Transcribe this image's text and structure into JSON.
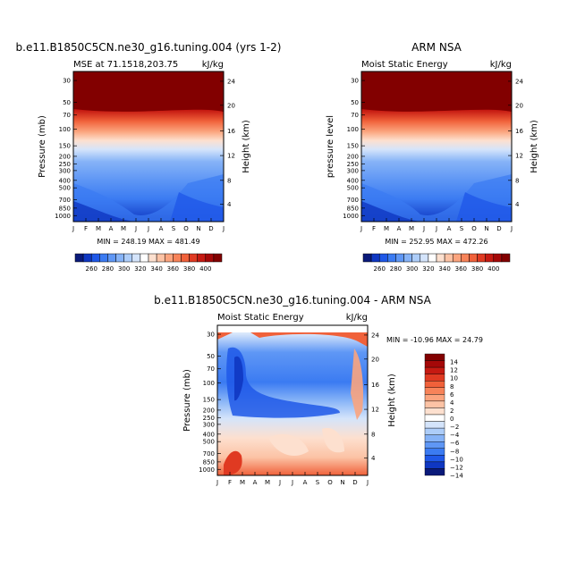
{
  "panel_top_left": {
    "title": "b.e11.B1850C5CN.ne30_g16.tuning.004 (yrs 1-2)",
    "left_label": "MSE at 71.1518,203.75",
    "right_label": "kJ/kg",
    "ylabel_left": "Pressure (mb)",
    "ylabel_right": "Height (km)",
    "minmax": "MIN = 248.19 MAX = 481.49"
  },
  "panel_top_right": {
    "title": "ARM NSA",
    "left_label": "Moist Static Energy",
    "right_label": "kJ/kg",
    "ylabel_left": "pressure level",
    "ylabel_right": "Height (km)",
    "minmax": "MIN = 252.95 MAX = 472.26"
  },
  "panel_bottom": {
    "title": "b.e11.B1850C5CN.ne30_g16.tuning.004 - ARM NSA",
    "left_label": "Moist Static Energy",
    "right_label": "kJ/kg",
    "ylabel_left": "Pressure (mb)",
    "ylabel_right": "Height (km)",
    "minmax": "MIN = -10.96 MAX =  24.79"
  },
  "chart_data": [
    {
      "type": "heatmap",
      "title": "MSE at 71.1518,203.75",
      "x_ticks": [
        "J",
        "F",
        "M",
        "A",
        "M",
        "J",
        "J",
        "A",
        "S",
        "O",
        "N",
        "D",
        "J"
      ],
      "y_ticks_pressure": [
        "30",
        "50",
        "70",
        "100",
        "150",
        "200",
        "250",
        "300",
        "400",
        "500",
        "700",
        "850",
        "1000"
      ],
      "y_ticks_height": [
        "24",
        "20",
        "16",
        "12",
        "8",
        "4"
      ],
      "colorbar_labels": [
        "260",
        "280",
        "300",
        "320",
        "340",
        "360",
        "380",
        "400"
      ],
      "colorbar_colors": [
        "#0a1a7a",
        "#0f37c2",
        "#1f58e8",
        "#3b7bf2",
        "#5f97f5",
        "#86b3f7",
        "#adcdf9",
        "#d4e4fb",
        "#ffffff",
        "#fde0cf",
        "#fcc3a5",
        "#fba47e",
        "#f78359",
        "#f0613a",
        "#e03a22",
        "#c61a12",
        "#a50808",
        "#820000"
      ],
      "minmax": "MIN = 248.19 MAX = 481.49"
    },
    {
      "type": "heatmap",
      "title": "Moist Static Energy",
      "x_ticks": [
        "J",
        "F",
        "M",
        "A",
        "M",
        "J",
        "J",
        "A",
        "S",
        "O",
        "N",
        "D",
        "J"
      ],
      "y_ticks_pressure": [
        "30",
        "50",
        "70",
        "100",
        "150",
        "200",
        "250",
        "300",
        "400",
        "500",
        "700",
        "850",
        "1000"
      ],
      "y_ticks_height": [
        "24",
        "20",
        "16",
        "12",
        "8",
        "4"
      ],
      "colorbar_labels": [
        "260",
        "280",
        "300",
        "320",
        "340",
        "360",
        "380",
        "400"
      ],
      "minmax": "MIN = 252.95 MAX = 472.26"
    },
    {
      "type": "heatmap",
      "title": "Moist Static Energy",
      "x_ticks": [
        "J",
        "F",
        "M",
        "A",
        "M",
        "J",
        "J",
        "A",
        "S",
        "O",
        "N",
        "D",
        "J"
      ],
      "y_ticks_pressure": [
        "30",
        "50",
        "70",
        "100",
        "150",
        "200",
        "250",
        "300",
        "400",
        "500",
        "700",
        "850",
        "1000"
      ],
      "y_ticks_height": [
        "24",
        "20",
        "16",
        "12",
        "8",
        "4"
      ],
      "colorbar_labels": [
        "14",
        "12",
        "10",
        "8",
        "6",
        "4",
        "2",
        "0",
        "−2",
        "−4",
        "−6",
        "−8",
        "−10",
        "−12",
        "−14"
      ],
      "colorbar_colors": [
        "#820000",
        "#a50808",
        "#c61a12",
        "#e03a22",
        "#f0613a",
        "#f78359",
        "#fba47e",
        "#fcc3a5",
        "#fde0cf",
        "#ffffff",
        "#d4e4fb",
        "#adcdf9",
        "#86b3f7",
        "#5f97f5",
        "#3b7bf2",
        "#1f58e8",
        "#0f37c2",
        "#0a1a7a"
      ],
      "minmax": "MIN = -10.96 MAX =  24.79"
    }
  ]
}
